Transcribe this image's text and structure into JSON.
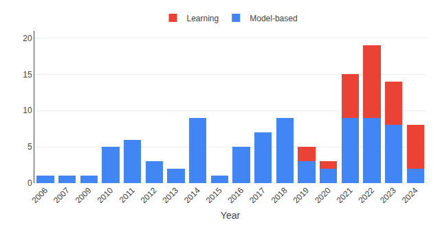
{
  "chart_data": {
    "type": "bar",
    "stacked": true,
    "categories": [
      "2006",
      "2007",
      "2009",
      "2010",
      "2011",
      "2012",
      "2013",
      "2014",
      "2015",
      "2016",
      "2017",
      "2018",
      "2019",
      "2020",
      "2021",
      "2022",
      "2023",
      "2024"
    ],
    "series": [
      {
        "name": "Model-based",
        "color": "#4285F4",
        "values": [
          1,
          1,
          1,
          5,
          6,
          3,
          2,
          9,
          1,
          5,
          7,
          9,
          3,
          2,
          9,
          9,
          8,
          2
        ]
      },
      {
        "name": "Learning",
        "color": "#EA4335",
        "values": [
          0,
          0,
          0,
          0,
          0,
          0,
          0,
          0,
          0,
          0,
          0,
          0,
          2,
          1,
          6,
          10,
          6,
          6
        ]
      }
    ],
    "xlabel": "Year",
    "ylim": [
      0,
      21
    ],
    "yticks": [
      0,
      5,
      10,
      15,
      20
    ],
    "grid": true,
    "legend": "top"
  }
}
